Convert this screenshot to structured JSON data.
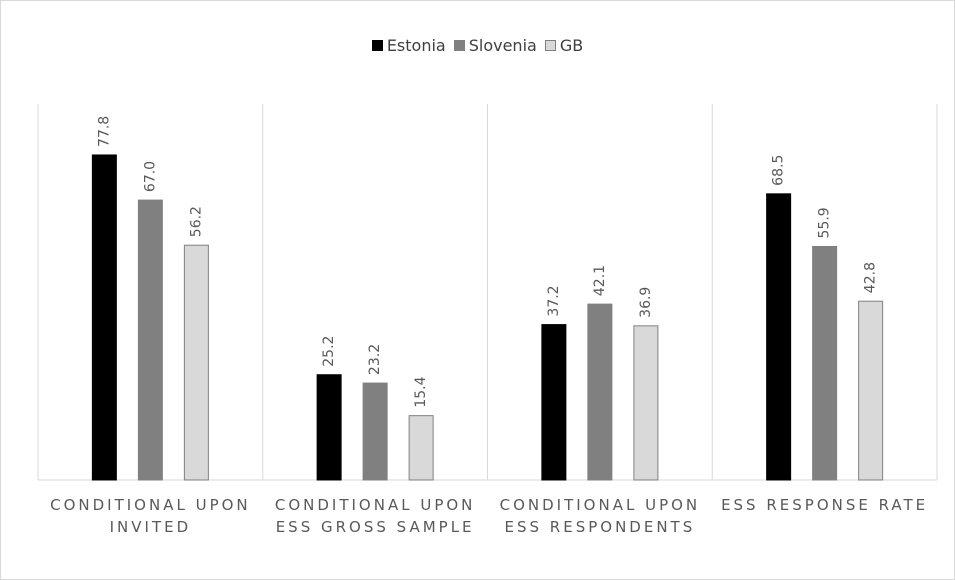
{
  "chart_data": {
    "type": "bar",
    "categories": [
      "CONDITIONAL UPON INVITED",
      "CONDITIONAL UPON ESS GROSS SAMPLE",
      "CONDITIONAL UPON ESS RESPONDENTS",
      "ESS RESPONSE RATE"
    ],
    "series": [
      {
        "name": "Estonia",
        "color": "#000000",
        "values": [
          77.8,
          25.2,
          37.2,
          68.5
        ],
        "value_labels": [
          "77.8",
          "25.2",
          "37.2",
          "68.5"
        ]
      },
      {
        "name": "Slovenia",
        "color": "#808080",
        "values": [
          67.0,
          23.2,
          42.1,
          55.9
        ],
        "value_labels": [
          "67.0",
          "23.2",
          "42.1",
          "55.9"
        ]
      },
      {
        "name": "GB",
        "color": "#d9d9d9",
        "values": [
          56.2,
          15.4,
          36.9,
          42.8
        ],
        "value_labels": [
          "56.2",
          "15.4",
          "36.9",
          "42.8"
        ]
      }
    ],
    "ylim": [
      0,
      90
    ],
    "legend": "top"
  }
}
